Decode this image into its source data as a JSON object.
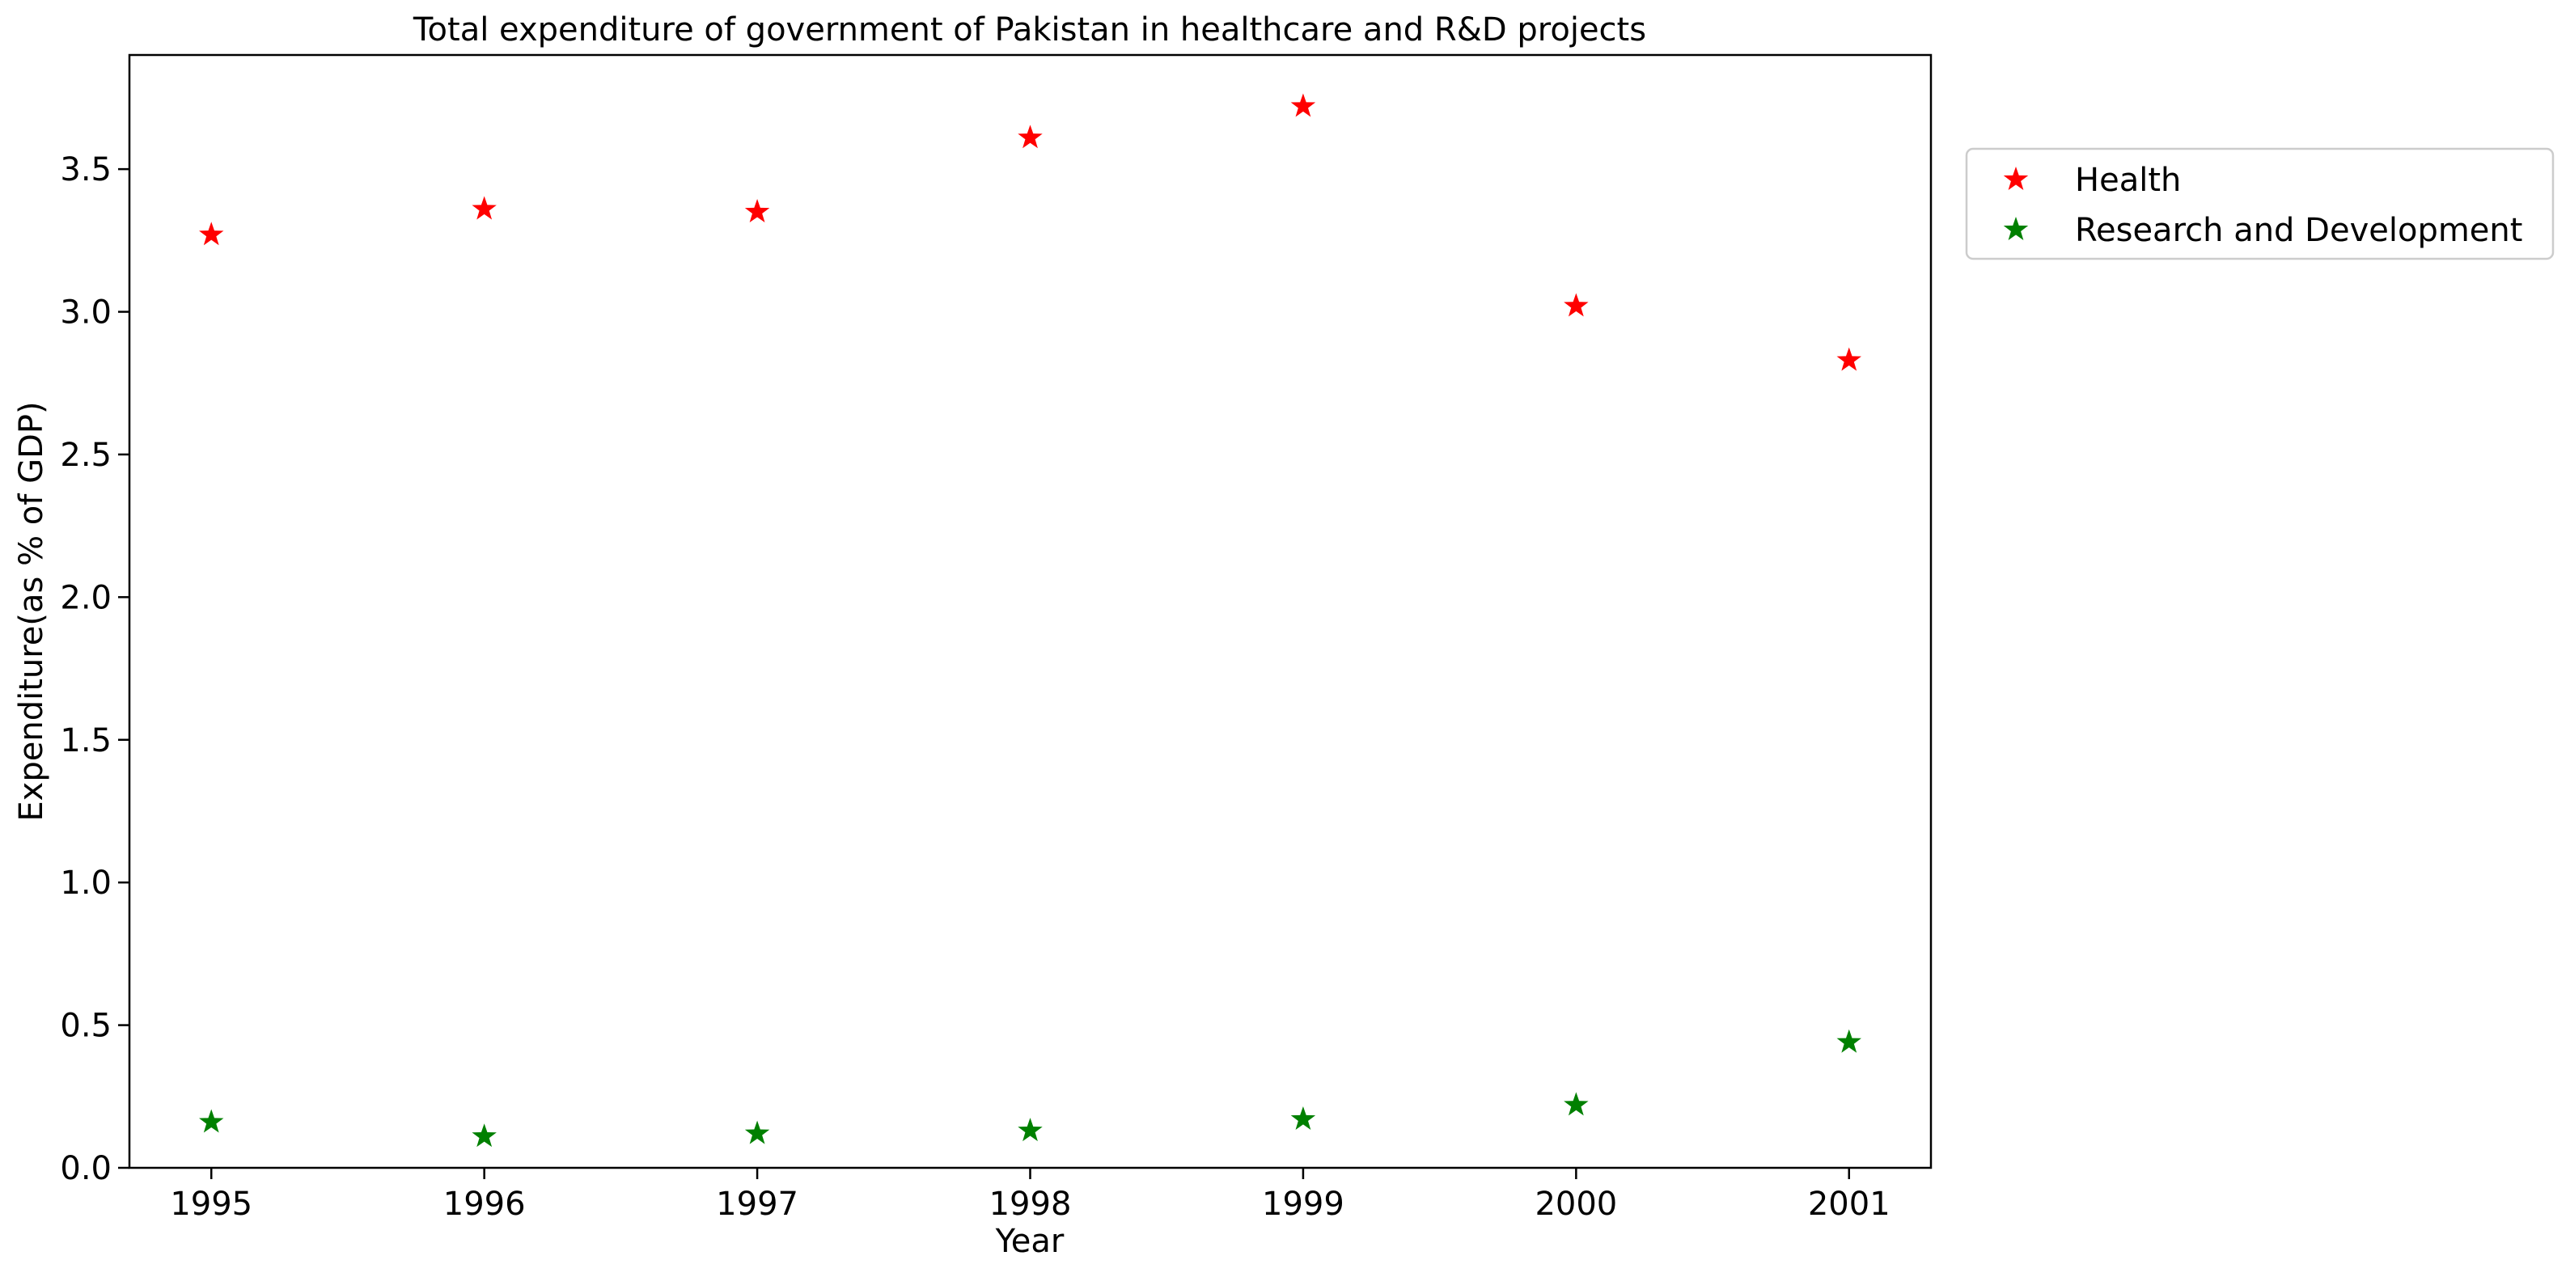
{
  "chart_data": {
    "type": "scatter",
    "title": "Total expenditure of government of Pakistan in healthcare and R&D projects",
    "xlabel": "Year",
    "ylabel": "Expenditure(as % of GDP)",
    "x": [
      1995,
      1996,
      1997,
      1998,
      1999,
      2000,
      2001
    ],
    "xlim": [
      1994.7,
      2001.3
    ],
    "ylim": [
      0,
      3.9
    ],
    "xticks": [
      "1995",
      "1996",
      "1997",
      "1998",
      "1999",
      "2000",
      "2001"
    ],
    "yticks": [
      "0.0",
      "0.5",
      "1.0",
      "1.5",
      "2.0",
      "2.5",
      "3.0",
      "3.5"
    ],
    "grid": false,
    "legend_position": "outside-right-top",
    "marker": "star",
    "series": [
      {
        "name": "Health",
        "color": "#ff0000",
        "values": [
          3.27,
          3.36,
          3.35,
          3.61,
          3.72,
          3.02,
          2.83
        ]
      },
      {
        "name": "Research and Development",
        "color": "#008000",
        "values": [
          0.16,
          0.11,
          0.12,
          0.13,
          0.17,
          0.22,
          0.44
        ]
      }
    ]
  }
}
